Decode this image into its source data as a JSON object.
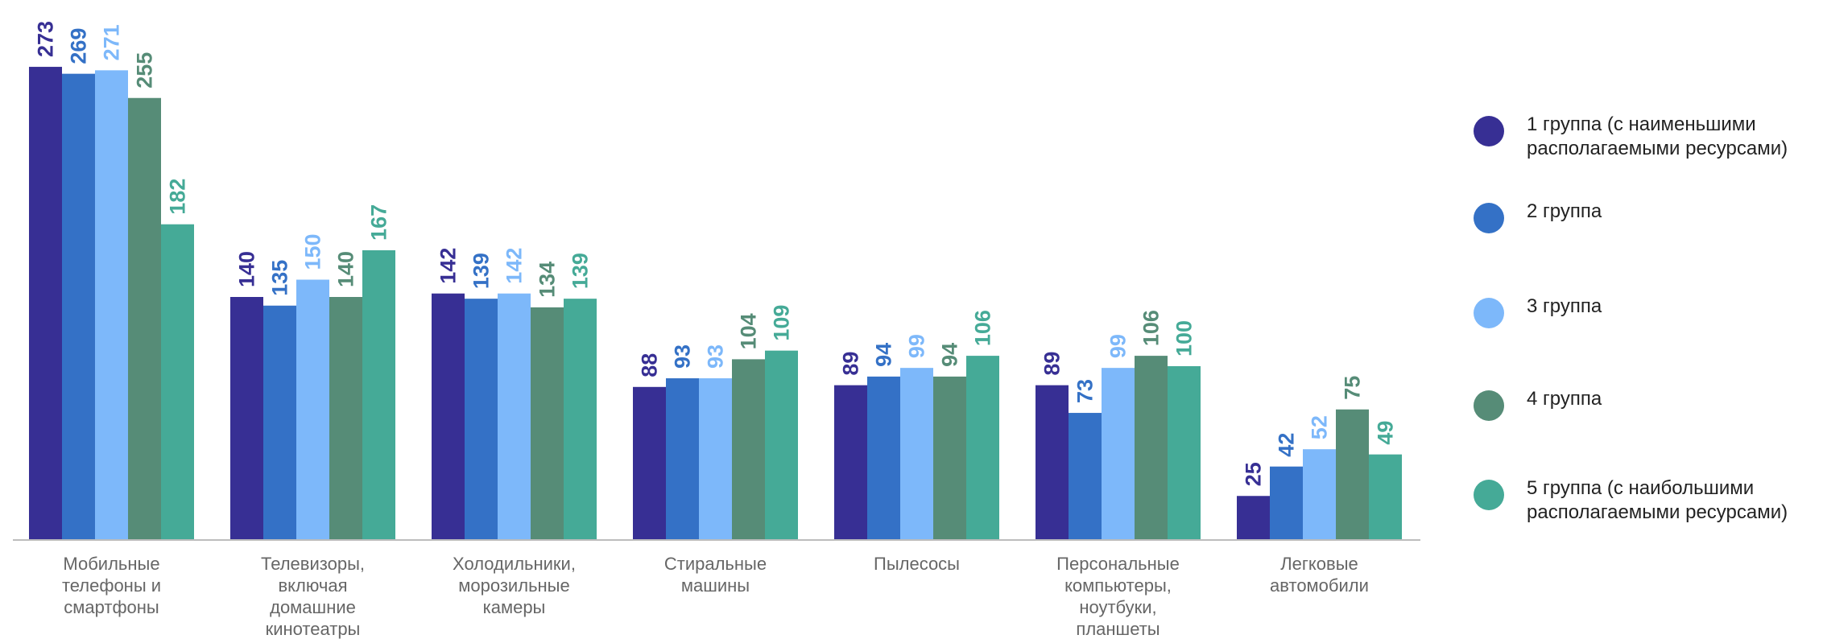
{
  "chart_data": {
    "type": "bar",
    "categories": [
      "Мобильные\nтелефоны и\nсмартфоны",
      "Телевизоры,\nвключая\nдомашние\nкинотеатры",
      "Холодильники,\nморозильные\nкамеры",
      "Стиральные\nмашины",
      "Пылесосы",
      "Персональные\nкомпьютеры,\nноутбуки,\nпланшеты",
      "Легковые\nавтомобили"
    ],
    "series": [
      {
        "name": "1 группа (с наименьшими располагаемыми ресурсами)",
        "color": "#372F94",
        "values": [
          273,
          140,
          142,
          88,
          89,
          89,
          25
        ]
      },
      {
        "name": "2 группа",
        "color": "#3471C6",
        "values": [
          269,
          135,
          139,
          93,
          94,
          73,
          42
        ]
      },
      {
        "name": "3 группа",
        "color": "#7DB8FA",
        "values": [
          271,
          150,
          142,
          93,
          99,
          99,
          52
        ]
      },
      {
        "name": "4 группа",
        "color": "#568C77",
        "values": [
          255,
          140,
          134,
          104,
          94,
          106,
          75
        ]
      },
      {
        "name": "5 группа (с наибольшими располагаемыми ресурсами)",
        "color": "#45AA97",
        "values": [
          182,
          167,
          139,
          109,
          106,
          100,
          49
        ]
      }
    ],
    "ylim": [
      0,
      300
    ],
    "grid": false,
    "legend_position": "right",
    "data_labels": true
  },
  "legend": {
    "items": [
      {
        "label": "1 группа (с наименьшими\nрасполагаемыми ресурсами)",
        "color": "#372F94"
      },
      {
        "label": "2 группа",
        "color": "#3471C6"
      },
      {
        "label": "3 группа",
        "color": "#7DB8FA"
      },
      {
        "label": "4 группа",
        "color": "#568C77"
      },
      {
        "label": "5 группа (с наибольшими\nрасполагаемыми ресурсами)",
        "color": "#45AA97"
      }
    ]
  }
}
